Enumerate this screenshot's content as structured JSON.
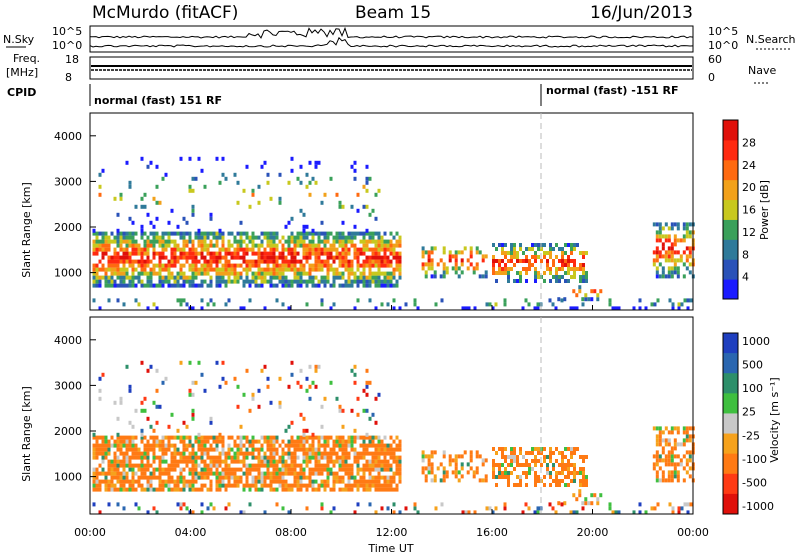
{
  "header": {
    "station": "McMurdo (fitACF)",
    "beam": "Beam 15",
    "date": "16/Jun/2013"
  },
  "aux_labels": {
    "nsky": "N.Sky",
    "nsky_ticks": [
      "10^5",
      "10^0"
    ],
    "nsearch": "N.Search",
    "nsearch_ticks": [
      "10^5",
      "10^0"
    ],
    "freq": "Freq.",
    "freq_unit": "[MHz]",
    "freq_ticks": [
      "18",
      "8"
    ],
    "nave": "Nave",
    "nave_ticks": [
      "60",
      "0"
    ],
    "cpid": "CPID",
    "cpid_segments": [
      "normal (fast) 151 RF",
      "normal (fast) -151 RF"
    ]
  },
  "colors": {
    "power": [
      "#1b1bff",
      "#2a52b8",
      "#2f7a9a",
      "#3aa05a",
      "#c8c81e",
      "#f2a11a",
      "#ff6a10",
      "#ff2a10",
      "#e0100a"
    ],
    "velocity": [
      "#1f3fbf",
      "#2a66b0",
      "#2d8f6a",
      "#3fbf3f",
      "#c8c8c8",
      "#f6a21c",
      "#ff7a14",
      "#ff3a14",
      "#e0100a"
    ]
  },
  "chart_data": [
    {
      "type": "heatmap",
      "title": "Power",
      "xlabel": "Time UT",
      "ylabel": "Slant Range [km]",
      "x_ticks": [
        "00:00",
        "04:00",
        "08:00",
        "12:00",
        "16:00",
        "20:00",
        "00:00"
      ],
      "y_ticks": [
        "1000",
        "2000",
        "3000",
        "4000"
      ],
      "ylim": [
        180,
        4500
      ],
      "colorbar_label": "Power [dB]",
      "colorbar_ticks": [
        "4",
        "8",
        "12",
        "16",
        "20",
        "24",
        "28"
      ],
      "colorbar_range": [
        0,
        32
      ]
    },
    {
      "type": "heatmap",
      "title": "Velocity",
      "xlabel": "Time UT",
      "ylabel": "Slant Range [km]",
      "x_ticks": [
        "00:00",
        "04:00",
        "08:00",
        "12:00",
        "16:00",
        "20:00",
        "00:00"
      ],
      "y_ticks": [
        "1000",
        "2000",
        "3000",
        "4000"
      ],
      "ylim": [
        180,
        4500
      ],
      "colorbar_label": "Velocity [m s⁻¹]",
      "colorbar_ticks": [
        "1000",
        "500",
        "100",
        "25",
        "-25",
        "-100",
        "-500",
        "-1000"
      ]
    }
  ]
}
